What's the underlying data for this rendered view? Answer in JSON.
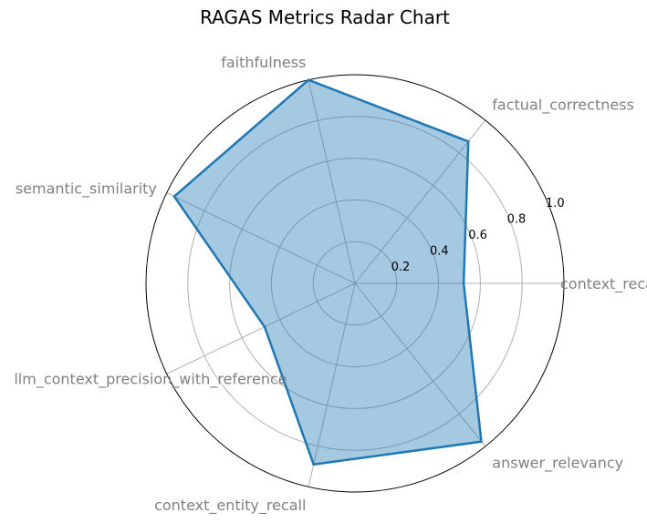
{
  "chart_data": {
    "type": "radar",
    "title": "RAGAS Metrics Radar Chart",
    "categories": [
      "context_recall",
      "factual_correctness",
      "faithfulness",
      "semantic_similarity",
      "llm_context_precision_with_reference",
      "context_entity_recall",
      "answer_relevancy"
    ],
    "values": [
      0.52,
      0.87,
      1.0,
      0.96,
      0.48,
      0.89,
      0.97
    ],
    "rlim": [
      0,
      1.0
    ],
    "r_ticks": [
      0.2,
      0.4,
      0.6,
      0.8,
      1.0
    ],
    "r_tick_labels": [
      "0.2",
      "0.4",
      "0.6",
      "0.8",
      "1.0"
    ],
    "grid": true,
    "colors": {
      "line": "#1f77b4",
      "fill": "#1f77b4",
      "grid": "#b0b0b0",
      "label": "#808080",
      "frame": "#000000"
    }
  }
}
